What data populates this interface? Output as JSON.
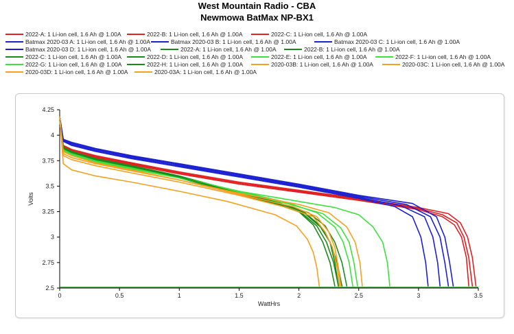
{
  "chart_data": {
    "type": "line",
    "title": "West Mountain Radio - CBA",
    "subtitle": "Newmowa BatMax NP-BX1",
    "xlabel": "WattHrs",
    "ylabel": "Volts",
    "xlim": [
      0,
      3.5
    ],
    "ylim": [
      2.5,
      4.25
    ],
    "xticks": [
      0,
      0.5,
      1,
      1.5,
      2,
      2.5,
      3,
      3.5
    ],
    "xtick_labels": [
      "0",
      "0.5",
      "1",
      "1.5",
      "2",
      "2.5",
      "3",
      "3.5"
    ],
    "yticks": [
      2.5,
      2.75,
      3,
      3.25,
      3.5,
      3.75,
      4,
      4.25
    ],
    "ytick_labels": [
      "2.5",
      "2.75",
      "3",
      "3.25",
      "3.5",
      "3.75",
      "4",
      "4.25"
    ],
    "grid": false,
    "legend_position": "top",
    "series": [
      {
        "name": "2022-A: 1 Li-ion cell, 1.6 Ah @ 1.00A",
        "color": "#e02020",
        "x": [
          0,
          0.03,
          0.1,
          0.3,
          0.6,
          1.0,
          1.5,
          2.0,
          2.5,
          3.0,
          3.2,
          3.3,
          3.36,
          3.4,
          3.42
        ],
        "y": [
          4.18,
          3.88,
          3.84,
          3.78,
          3.71,
          3.62,
          3.52,
          3.44,
          3.36,
          3.27,
          3.2,
          3.12,
          3.0,
          2.8,
          2.52
        ]
      },
      {
        "name": "2022-B: 1 Li-ion cell, 1.6 Ah @ 1.00A",
        "color": "#e02020",
        "x": [
          0,
          0.03,
          0.1,
          0.3,
          0.6,
          1.0,
          1.5,
          2.0,
          2.5,
          3.0,
          3.2,
          3.32,
          3.38,
          3.42,
          3.45
        ],
        "y": [
          4.18,
          3.89,
          3.85,
          3.79,
          3.72,
          3.63,
          3.53,
          3.45,
          3.37,
          3.28,
          3.22,
          3.14,
          3.0,
          2.8,
          2.52
        ]
      },
      {
        "name": "2022-C: 1 Li-ion cell, 1.6 Ah @ 1.00A",
        "color": "#e02020",
        "x": [
          0,
          0.03,
          0.1,
          0.3,
          0.6,
          1.0,
          1.5,
          2.0,
          2.5,
          3.0,
          3.25,
          3.35,
          3.41,
          3.45,
          3.48
        ],
        "y": [
          4.18,
          3.9,
          3.86,
          3.8,
          3.73,
          3.64,
          3.54,
          3.46,
          3.38,
          3.29,
          3.23,
          3.14,
          3.0,
          2.8,
          2.52
        ]
      },
      {
        "name": "Batmax 2020-03 A: 1 Li-ion cell, 1.6 Ah @ 1.00A",
        "color": "#1a20d0",
        "x": [
          0,
          0.03,
          0.1,
          0.3,
          0.6,
          1.0,
          1.5,
          2.0,
          2.5,
          2.8,
          2.95,
          3.02,
          3.06,
          3.08
        ],
        "y": [
          4.18,
          3.94,
          3.9,
          3.84,
          3.77,
          3.69,
          3.59,
          3.49,
          3.38,
          3.3,
          3.2,
          3.0,
          2.75,
          2.52
        ]
      },
      {
        "name": "Batmax 2020-03 B: 1 Li-ion cell, 1.6 Ah @ 1.00A",
        "color": "#1a20d0",
        "x": [
          0,
          0.03,
          0.1,
          0.3,
          0.6,
          1.0,
          1.5,
          2.0,
          2.5,
          2.85,
          3.05,
          3.12,
          3.16,
          3.18
        ],
        "y": [
          4.18,
          3.95,
          3.91,
          3.85,
          3.78,
          3.7,
          3.6,
          3.5,
          3.39,
          3.31,
          3.2,
          3.0,
          2.75,
          2.52
        ]
      },
      {
        "name": "Batmax 2020-03 C: 1 Li-ion cell, 1.6 Ah @ 1.00A",
        "color": "#1a20d0",
        "x": [
          0,
          0.03,
          0.1,
          0.3,
          0.6,
          1.0,
          1.5,
          2.0,
          2.5,
          2.9,
          3.1,
          3.18,
          3.22,
          3.25
        ],
        "y": [
          4.18,
          3.96,
          3.92,
          3.86,
          3.79,
          3.71,
          3.61,
          3.51,
          3.4,
          3.32,
          3.2,
          3.0,
          2.75,
          2.52
        ]
      },
      {
        "name": "Batmax 2020-03 D: 1 Li-ion cell, 1.6 Ah @ 1.00A",
        "color": "#1a20d0",
        "x": [
          0,
          0.03,
          0.1,
          0.3,
          0.6,
          1.0,
          1.5,
          2.0,
          2.5,
          2.95,
          3.15,
          3.22,
          3.26,
          3.29
        ],
        "y": [
          4.18,
          3.96,
          3.93,
          3.87,
          3.8,
          3.72,
          3.62,
          3.52,
          3.41,
          3.33,
          3.2,
          3.0,
          2.75,
          2.52
        ]
      },
      {
        "name": "2022-A: 1 Li-ion cell, 1.6 Ah @ 1.00A",
        "color": "#1a8a1a",
        "x": [
          0,
          0.03,
          0.1,
          0.3,
          0.6,
          1.0,
          1.5,
          1.8,
          2.0,
          2.12,
          2.2,
          2.26,
          2.3
        ],
        "y": [
          4.15,
          3.88,
          3.84,
          3.77,
          3.7,
          3.6,
          3.44,
          3.34,
          3.25,
          3.12,
          2.95,
          2.75,
          2.52
        ]
      },
      {
        "name": "2022-B: 1 Li-ion cell, 1.6 Ah @ 1.00A",
        "color": "#1a8a1a",
        "x": [
          0,
          0.03,
          0.1,
          0.3,
          0.6,
          1.0,
          1.5,
          1.8,
          2.02,
          2.15,
          2.23,
          2.29,
          2.33
        ],
        "y": [
          4.15,
          3.87,
          3.83,
          3.76,
          3.69,
          3.59,
          3.43,
          3.33,
          3.24,
          3.11,
          2.95,
          2.75,
          2.52
        ]
      },
      {
        "name": "2022-C: 1 Li-ion cell, 1.6 Ah @ 1.00A",
        "color": "#1a8a1a",
        "x": [
          0,
          0.03,
          0.1,
          0.3,
          0.6,
          1.0,
          1.5,
          1.82,
          2.05,
          2.18,
          2.26,
          2.32,
          2.36
        ],
        "y": [
          4.15,
          3.86,
          3.82,
          3.75,
          3.68,
          3.58,
          3.42,
          3.32,
          3.23,
          3.1,
          2.95,
          2.75,
          2.52
        ]
      },
      {
        "name": "2022-D: 1 Li-ion cell, 1.6 Ah @ 1.00A",
        "color": "#1a8a1a",
        "x": [
          0,
          0.03,
          0.1,
          0.3,
          0.6,
          1.0,
          1.5,
          1.85,
          2.08,
          2.22,
          2.3,
          2.36,
          2.4
        ],
        "y": [
          4.15,
          3.88,
          3.84,
          3.77,
          3.7,
          3.6,
          3.44,
          3.33,
          3.24,
          3.11,
          2.95,
          2.75,
          2.52
        ]
      },
      {
        "name": "2022-E: 1 Li-ion cell, 1.6 Ah @ 1.00A",
        "color": "#3ee03e",
        "x": [
          0,
          0.03,
          0.1,
          0.3,
          0.6,
          1.0,
          1.5,
          1.9,
          2.15,
          2.3,
          2.37,
          2.42,
          2.45
        ],
        "y": [
          4.15,
          3.86,
          3.82,
          3.75,
          3.68,
          3.59,
          3.45,
          3.34,
          3.24,
          3.1,
          2.95,
          2.75,
          2.52
        ]
      },
      {
        "name": "2022-F: 1 Li-ion cell, 1.6 Ah @ 1.00A",
        "color": "#3ee03e",
        "x": [
          0,
          0.03,
          0.1,
          0.3,
          0.6,
          1.0,
          1.5,
          1.9,
          2.2,
          2.35,
          2.42,
          2.46,
          2.49
        ],
        "y": [
          4.15,
          3.85,
          3.81,
          3.74,
          3.67,
          3.58,
          3.44,
          3.33,
          3.23,
          3.09,
          2.95,
          2.75,
          2.52
        ]
      },
      {
        "name": "2022-G: 1 Li-ion cell, 1.6 Ah @ 1.00A",
        "color": "#3ee03e",
        "x": [
          0,
          0.03,
          0.1,
          0.3,
          0.6,
          1.0,
          1.5,
          2.0,
          2.3,
          2.5,
          2.62,
          2.7,
          2.74,
          2.76
        ],
        "y": [
          4.15,
          3.84,
          3.8,
          3.74,
          3.67,
          3.58,
          3.45,
          3.35,
          3.29,
          3.22,
          3.1,
          2.95,
          2.75,
          2.52
        ]
      },
      {
        "name": "2022-H: 1 Li-ion cell, 1.6 Ah @ 1.00A",
        "color": "#1a8a1a",
        "x": [
          0,
          0.03,
          0.1,
          0.3,
          0.6,
          1.0,
          1.5,
          1.85,
          2.05,
          2.18,
          2.26,
          2.3,
          2.33
        ],
        "y": [
          4.15,
          3.87,
          3.83,
          3.76,
          3.69,
          3.59,
          3.43,
          3.33,
          3.24,
          3.11,
          2.95,
          2.75,
          2.52
        ]
      },
      {
        "name": "2020-03B: 1 Li-ion cell, 1.6 Ah @ 1.00A",
        "color": "#f5a020",
        "x": [
          0,
          0.03,
          0.1,
          0.3,
          0.6,
          1.0,
          1.5,
          1.95,
          2.15,
          2.25,
          2.3,
          2.33,
          2.35
        ],
        "y": [
          4.18,
          3.84,
          3.8,
          3.73,
          3.66,
          3.56,
          3.42,
          3.3,
          3.2,
          3.05,
          2.9,
          2.7,
          2.52
        ]
      },
      {
        "name": "2020-03C: 1 Li-ion cell, 1.6 Ah @ 1.00A",
        "color": "#f5a020",
        "x": [
          0,
          0.03,
          0.1,
          0.3,
          0.6,
          1.0,
          1.5,
          2.0,
          2.25,
          2.4,
          2.47,
          2.51,
          2.53
        ],
        "y": [
          4.18,
          3.82,
          3.78,
          3.72,
          3.65,
          3.56,
          3.43,
          3.32,
          3.24,
          3.1,
          2.95,
          2.75,
          2.52
        ]
      },
      {
        "name": "2020-03D: 1 Li-ion cell, 1.6 Ah @ 1.00A",
        "color": "#f5a020",
        "x": [
          0,
          0.03,
          0.1,
          0.3,
          0.6,
          1.0,
          1.5,
          1.9,
          2.12,
          2.22,
          2.28,
          2.32,
          2.34
        ],
        "y": [
          4.18,
          3.8,
          3.76,
          3.7,
          3.63,
          3.54,
          3.41,
          3.29,
          3.2,
          3.05,
          2.9,
          2.7,
          2.52
        ]
      },
      {
        "name": "2020-03A: 1 Li-ion cell, 1.6 Ah @ 1.00A",
        "color": "#f5a020",
        "x": [
          0,
          0.03,
          0.1,
          0.3,
          0.6,
          1.0,
          1.4,
          1.8,
          1.98,
          2.07,
          2.12,
          2.15,
          2.17
        ],
        "y": [
          4.18,
          3.72,
          3.66,
          3.6,
          3.54,
          3.45,
          3.35,
          3.22,
          3.11,
          2.98,
          2.85,
          2.7,
          2.52
        ]
      }
    ]
  }
}
